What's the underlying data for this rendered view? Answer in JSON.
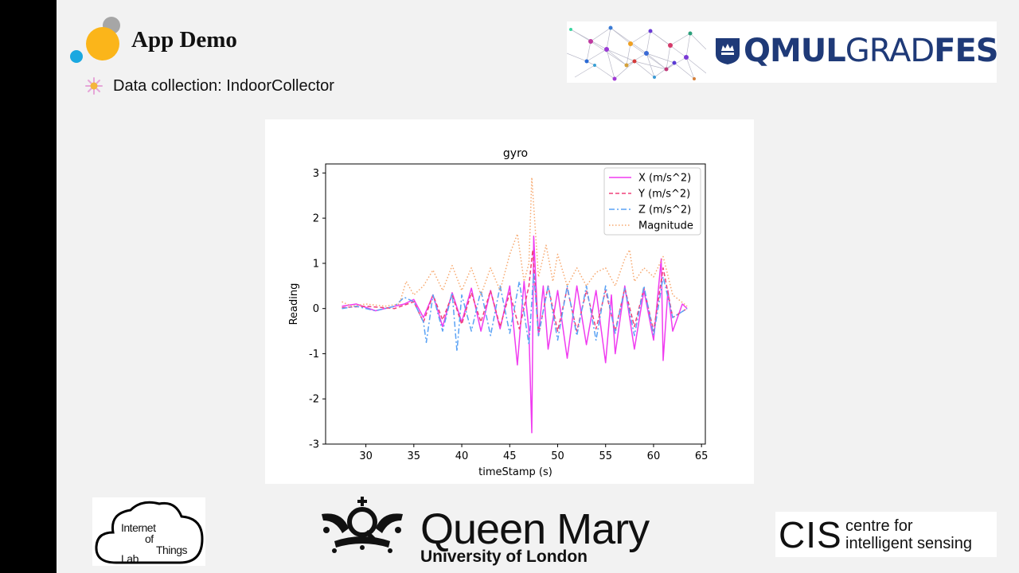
{
  "slide": {
    "title": "App Demo",
    "bullet": "Data collection: IndoorCollector"
  },
  "logos": {
    "gradfest": {
      "bold1": "QMUL",
      "light": "GRAD",
      "bold2": "FEST",
      "color": "#1f3a78"
    },
    "iot": {
      "line1": "Internet",
      "line2": "of",
      "line3": "Things",
      "line4": "Lab"
    },
    "qm": {
      "name": "Queen Mary",
      "sub": "University of London"
    },
    "cis": {
      "big": "CIS",
      "line1": "centre for",
      "line2": "intelligent sensing"
    }
  },
  "colors": {
    "x": "#f03cf0",
    "y": "#f0407a",
    "z": "#5aa2f5",
    "mag": "#f7a86e",
    "title_dot_large": "#fbb51a",
    "title_dot_small": "#1aa8e0",
    "title_dot_gray": "#a6a6a6"
  },
  "chart_data": {
    "type": "line",
    "title": "gyro",
    "xlabel": "timeStamp (s)",
    "ylabel": "Reading",
    "xlim": [
      25.8,
      65.4
    ],
    "ylim": [
      -3,
      3.2
    ],
    "xticks": [
      30,
      35,
      40,
      45,
      50,
      55,
      60,
      65
    ],
    "yticks": [
      -3,
      -2,
      -1,
      0,
      1,
      2,
      3
    ],
    "legend_position": "top-right",
    "series": [
      {
        "name": "X (m/s^2)",
        "style": "solid",
        "x": [
          27.5,
          29,
          31,
          33,
          34,
          35,
          36,
          37,
          38,
          39,
          40,
          41,
          42,
          43,
          44,
          45,
          45.8,
          46.5,
          47,
          47.3,
          47.5,
          48,
          48.5,
          49,
          50,
          51,
          52,
          53,
          54,
          55,
          55.6,
          56,
          57,
          58,
          59,
          60,
          60.8,
          61,
          61.5,
          62,
          63,
          63.5
        ],
        "y": [
          0.05,
          0.1,
          -0.05,
          0.05,
          0.1,
          0.2,
          -0.2,
          0.3,
          -0.4,
          0.35,
          -0.3,
          0.45,
          -0.5,
          0.4,
          -0.45,
          0.5,
          -1.25,
          0.6,
          -0.5,
          -2.75,
          1.6,
          -0.6,
          0.5,
          -0.9,
          0.4,
          -1.1,
          0.5,
          -0.8,
          0.4,
          -1.2,
          0.3,
          -1.0,
          0.5,
          -0.9,
          0.4,
          -0.7,
          1.1,
          -1.15,
          0.4,
          -0.5,
          0.1,
          0.0
        ]
      },
      {
        "name": "Y (m/s^2)",
        "style": "dashed",
        "x": [
          27.5,
          30,
          33,
          35,
          36,
          37,
          38,
          39,
          40,
          41,
          42,
          43,
          44,
          45,
          46,
          47,
          47.4,
          48,
          49,
          50,
          51,
          52,
          53,
          54,
          55,
          56,
          57,
          58,
          59,
          60,
          61,
          62,
          63.5
        ],
        "y": [
          0.02,
          0.05,
          0.0,
          0.15,
          -0.3,
          0.3,
          -0.25,
          0.3,
          -0.35,
          0.35,
          -0.3,
          0.4,
          -0.4,
          0.35,
          -0.45,
          0.5,
          1.3,
          -0.6,
          0.5,
          -0.5,
          0.45,
          -0.5,
          0.4,
          -0.45,
          0.4,
          -0.5,
          0.45,
          -0.4,
          0.45,
          -0.5,
          0.9,
          -0.2,
          0.0
        ]
      },
      {
        "name": "Z (m/s^2)",
        "style": "dashdot",
        "x": [
          27.5,
          29,
          31,
          33,
          34,
          35,
          36,
          36.3,
          37,
          38,
          39,
          39.5,
          40,
          41,
          42,
          43,
          44,
          45,
          46,
          47,
          47.5,
          48,
          49,
          50,
          51,
          52,
          53,
          54,
          55,
          56,
          57,
          58,
          59,
          60,
          61,
          62,
          63.5
        ],
        "y": [
          0.0,
          0.05,
          -0.05,
          0.05,
          0.25,
          0.15,
          -0.3,
          -0.75,
          0.3,
          -0.5,
          0.35,
          -0.95,
          0.3,
          -0.5,
          0.4,
          -0.6,
          0.5,
          -0.55,
          0.6,
          -0.8,
          0.8,
          -0.6,
          0.5,
          -0.7,
          0.5,
          -0.6,
          0.5,
          -0.7,
          0.5,
          -0.55,
          0.45,
          -0.6,
          0.5,
          -0.6,
          0.7,
          -0.2,
          0.0
        ]
      },
      {
        "name": "Magnitude",
        "style": "dotted",
        "x": [
          27.5,
          28.5,
          30,
          32,
          33.5,
          34.2,
          35,
          36,
          37,
          38,
          39,
          40,
          41,
          42,
          43,
          44,
          45,
          45.8,
          46.5,
          47,
          47.3,
          48,
          48.8,
          49.5,
          50,
          51,
          52,
          53,
          54,
          55,
          56,
          57,
          57.5,
          58,
          59,
          60,
          61,
          62,
          63.5
        ],
        "y": [
          0.15,
          0.05,
          0.1,
          0.05,
          0.1,
          0.6,
          0.3,
          0.5,
          0.85,
          0.4,
          0.95,
          0.4,
          0.9,
          0.3,
          0.9,
          0.4,
          1.2,
          1.65,
          0.6,
          1.0,
          2.9,
          0.7,
          1.4,
          0.6,
          1.2,
          0.5,
          0.9,
          0.5,
          0.8,
          0.9,
          0.5,
          1.1,
          1.3,
          0.6,
          0.9,
          0.7,
          1.15,
          0.3,
          0.05
        ]
      }
    ]
  }
}
